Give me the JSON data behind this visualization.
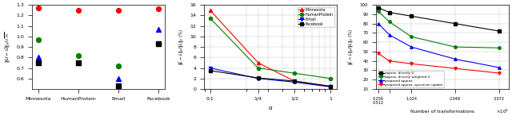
{
  "subplot1": {
    "categories": [
      "Minnesota",
      "HumanProtein",
      "Email",
      "Facebook"
    ],
    "red_dots": [
      1.27,
      1.25,
      1.25,
      1.26
    ],
    "green_dots": [
      0.97,
      0.82,
      0.72,
      0.93
    ],
    "blue_triangles": [
      0.8,
      0.75,
      0.6,
      1.07
    ],
    "black_squares": [
      0.75,
      0.75,
      0.53,
      0.93
    ],
    "ylim": [
      0.5,
      1.3
    ]
  },
  "subplot2": {
    "alpha_values": [
      0.1,
      0.25,
      0.5,
      1.0
    ],
    "alpha_labels": [
      "0.1",
      "1/4",
      "1/2",
      "1"
    ],
    "minnesota": [
      15.0,
      5.0,
      1.5,
      0.5
    ],
    "humanprotein": [
      13.5,
      4.0,
      3.0,
      2.0
    ],
    "email": [
      4.0,
      2.0,
      1.3,
      0.4
    ],
    "facebook": [
      3.5,
      2.1,
      1.5,
      0.5
    ],
    "ylim": [
      0,
      16
    ]
  },
  "subplot3": {
    "x_values": [
      0.256,
      0.512,
      1.024,
      2.048,
      3.072
    ],
    "x_labels": [
      "0.256\n0.512",
      "1.024",
      "2.048",
      "3.072"
    ],
    "approx_directly_U": [
      97,
      92,
      88,
      80,
      72
    ],
    "approx_directly_weighted_U": [
      93,
      82,
      66,
      55,
      54
    ],
    "proposed_approx": [
      80,
      68,
      55,
      42,
      33
    ],
    "proposed_approx_spectrum_update": [
      48,
      40,
      37,
      32,
      27
    ],
    "ylim": [
      10,
      100
    ],
    "legend": [
      "approx. directly U",
      "approx. directly weighted U",
      "proposed approx.",
      "proposed approx. spectrum update"
    ]
  }
}
